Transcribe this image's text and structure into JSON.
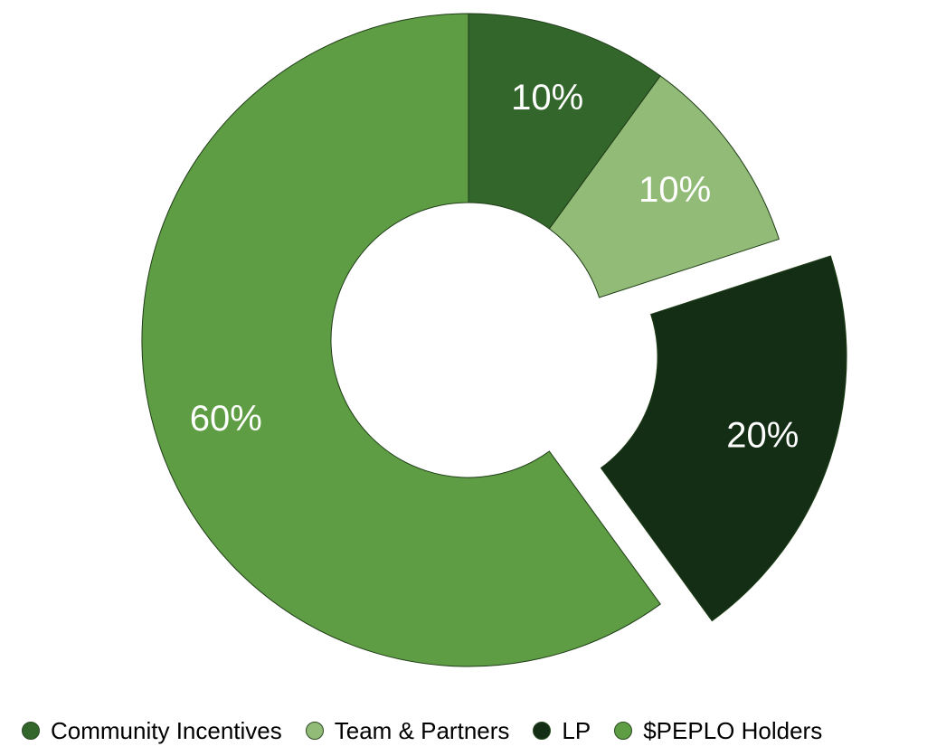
{
  "chart_data": {
    "type": "pie",
    "title": "",
    "categories": [
      "Community Incentives",
      "Team & Partners",
      "LP",
      "$PEPLO Holders"
    ],
    "values": [
      10,
      10,
      20,
      60
    ],
    "value_labels": [
      "10%",
      "10%",
      "20%",
      "60%"
    ],
    "colors": [
      "#33662b",
      "#93bb78",
      "#142e16",
      "#5e9d43"
    ],
    "donut": true,
    "exploded": [
      "LP"
    ],
    "start_angle": "top",
    "direction": "clockwise",
    "legend_position": "bottom"
  },
  "legend": {
    "items": [
      {
        "label": "Community Incentives",
        "color": "#33662b"
      },
      {
        "label": "Team & Partners",
        "color": "#93bb78"
      },
      {
        "label": "LP",
        "color": "#142e16"
      },
      {
        "label": "$PEPLO Holders",
        "color": "#5e9d43"
      }
    ]
  }
}
